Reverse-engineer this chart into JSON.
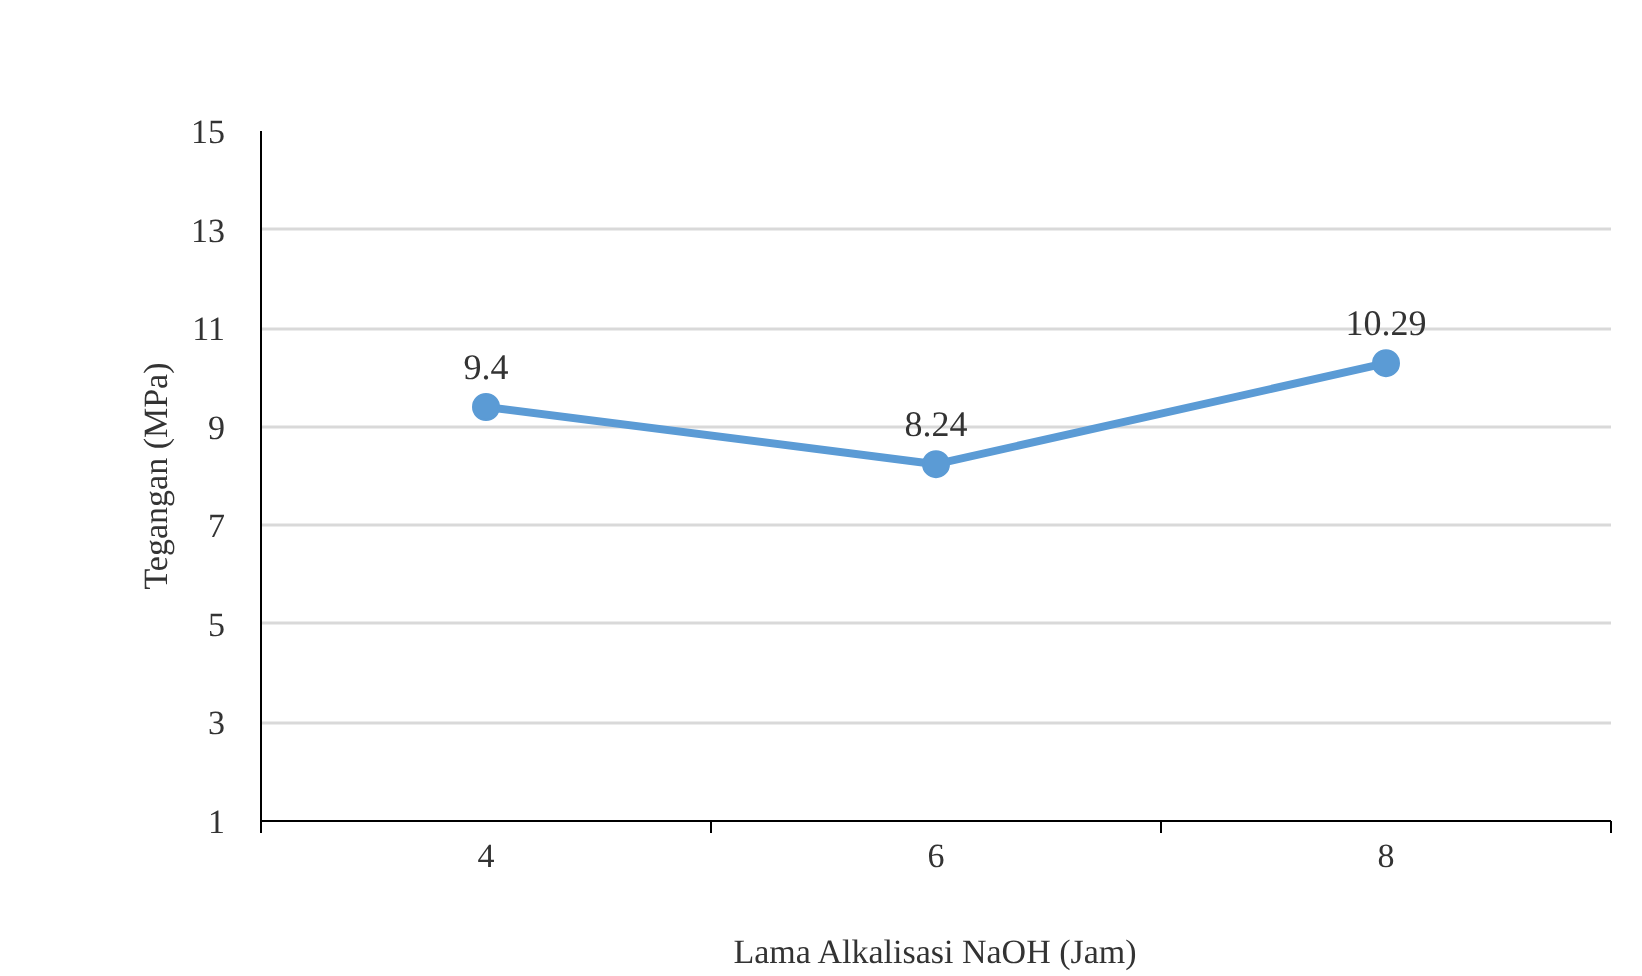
{
  "chart_data": {
    "type": "line",
    "xlabel": "Lama Alkalisasi NaOH (Jam)",
    "ylabel": "Tegangan (MPa)",
    "categories": [
      "4",
      "6",
      "8"
    ],
    "series": [
      {
        "color": "#5b9bd5",
        "values": [
          9.4,
          8.24,
          10.29
        ]
      }
    ],
    "ylim": [
      1,
      15
    ],
    "yticks": [
      1,
      3,
      5,
      7,
      9,
      11,
      13,
      15
    ],
    "grid": "y",
    "marker": "circle",
    "line_style": "solid",
    "data_labels": true
  }
}
